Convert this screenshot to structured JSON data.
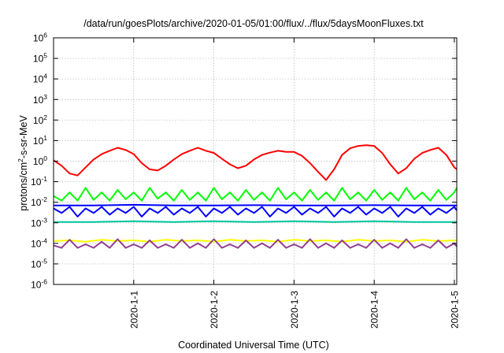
{
  "chart_data": {
    "type": "line",
    "title": "/data/run/goesPlots/archive/2020-01-05/01:00/flux/../flux/5daysMoonFluxes.txt",
    "xlabel": "Coordinated Universal Time (UTC)",
    "ylabel": "protons/cm2-s-sr-MeV",
    "ylabel_parts": {
      "pre": "protons/cm",
      "sup": "2",
      "post": "-s-sr-MeV"
    },
    "y_scale": "log",
    "ylim": [
      1e-06,
      1000000.0
    ],
    "xlim_days": [
      0,
      5.03
    ],
    "grid": true,
    "x_ticks": [
      {
        "day": 1,
        "label": "2020-1-1"
      },
      {
        "day": 2,
        "label": "2020-1-2"
      },
      {
        "day": 3,
        "label": "2020-1-3"
      },
      {
        "day": 4,
        "label": "2020-1-4"
      },
      {
        "day": 5,
        "label": "2020-1-5"
      }
    ],
    "y_ticks": [
      {
        "exp": -6,
        "base": "10",
        "sup": "-6"
      },
      {
        "exp": -5,
        "base": "10",
        "sup": "-5"
      },
      {
        "exp": -4,
        "base": "10",
        "sup": "-4"
      },
      {
        "exp": -3,
        "base": "10",
        "sup": "-3"
      },
      {
        "exp": -2,
        "base": "10",
        "sup": "-2"
      },
      {
        "exp": -1,
        "base": "10",
        "sup": "-1"
      },
      {
        "exp": 0,
        "base": "10",
        "sup": "0"
      },
      {
        "exp": 1,
        "base": "10",
        "sup": "1"
      },
      {
        "exp": 2,
        "base": "10",
        "sup": "2"
      },
      {
        "exp": 3,
        "base": "10",
        "sup": "3"
      },
      {
        "exp": 4,
        "base": "10",
        "sup": "4"
      },
      {
        "exp": 5,
        "base": "10",
        "sup": "5"
      },
      {
        "exp": 6,
        "base": "10",
        "sup": "6"
      }
    ],
    "series": [
      {
        "color": "#ff0000",
        "points": [
          [
            0,
            1.1
          ],
          [
            0.1,
            0.6
          ],
          [
            0.2,
            0.25
          ],
          [
            0.3,
            0.2
          ],
          [
            0.4,
            0.5
          ],
          [
            0.5,
            1.2
          ],
          [
            0.6,
            2.2
          ],
          [
            0.7,
            3.2
          ],
          [
            0.8,
            4.5
          ],
          [
            0.9,
            3.5
          ],
          [
            1.0,
            2.2
          ],
          [
            1.1,
            0.8
          ],
          [
            1.2,
            0.4
          ],
          [
            1.3,
            0.35
          ],
          [
            1.4,
            0.6
          ],
          [
            1.5,
            1.2
          ],
          [
            1.6,
            2.2
          ],
          [
            1.7,
            3.2
          ],
          [
            1.8,
            4.5
          ],
          [
            1.9,
            3.2
          ],
          [
            2.0,
            2.5
          ],
          [
            2.1,
            1.3
          ],
          [
            2.2,
            0.7
          ],
          [
            2.3,
            0.45
          ],
          [
            2.4,
            0.6
          ],
          [
            2.5,
            1.2
          ],
          [
            2.6,
            2.0
          ],
          [
            2.7,
            2.6
          ],
          [
            2.8,
            3.2
          ],
          [
            2.9,
            2.8
          ],
          [
            3.0,
            2.8
          ],
          [
            3.1,
            1.8
          ],
          [
            3.2,
            0.8
          ],
          [
            3.3,
            0.3
          ],
          [
            3.4,
            0.12
          ],
          [
            3.5,
            0.4
          ],
          [
            3.6,
            2.0
          ],
          [
            3.7,
            4.2
          ],
          [
            3.8,
            5.5
          ],
          [
            3.9,
            6.0
          ],
          [
            4.0,
            5.5
          ],
          [
            4.1,
            2.5
          ],
          [
            4.2,
            0.7
          ],
          [
            4.3,
            0.25
          ],
          [
            4.4,
            0.45
          ],
          [
            4.5,
            1.3
          ],
          [
            4.6,
            2.5
          ],
          [
            4.7,
            3.5
          ],
          [
            4.8,
            4.5
          ],
          [
            4.9,
            2.0
          ],
          [
            5.0,
            0.5
          ],
          [
            5.03,
            0.4
          ]
        ]
      },
      {
        "color": "#00ff00",
        "points": [
          [
            0,
            0.02
          ],
          [
            0.1,
            0.012
          ],
          [
            0.2,
            0.03
          ],
          [
            0.3,
            0.012
          ],
          [
            0.4,
            0.05
          ],
          [
            0.5,
            0.013
          ],
          [
            0.6,
            0.03
          ],
          [
            0.7,
            0.012
          ],
          [
            0.8,
            0.04
          ],
          [
            0.9,
            0.014
          ],
          [
            1.0,
            0.03
          ],
          [
            1.1,
            0.012
          ],
          [
            1.2,
            0.05
          ],
          [
            1.3,
            0.015
          ],
          [
            1.4,
            0.03
          ],
          [
            1.5,
            0.012
          ],
          [
            1.6,
            0.04
          ],
          [
            1.7,
            0.013
          ],
          [
            1.8,
            0.03
          ],
          [
            1.9,
            0.012
          ],
          [
            2.0,
            0.05
          ],
          [
            2.1,
            0.014
          ],
          [
            2.2,
            0.03
          ],
          [
            2.3,
            0.012
          ],
          [
            2.4,
            0.04
          ],
          [
            2.5,
            0.013
          ],
          [
            2.6,
            0.03
          ],
          [
            2.7,
            0.012
          ],
          [
            2.8,
            0.05
          ],
          [
            2.9,
            0.014
          ],
          [
            3.0,
            0.03
          ],
          [
            3.1,
            0.012
          ],
          [
            3.2,
            0.04
          ],
          [
            3.3,
            0.013
          ],
          [
            3.4,
            0.03
          ],
          [
            3.5,
            0.012
          ],
          [
            3.6,
            0.05
          ],
          [
            3.7,
            0.014
          ],
          [
            3.8,
            0.03
          ],
          [
            3.9,
            0.012
          ],
          [
            4.0,
            0.04
          ],
          [
            4.1,
            0.013
          ],
          [
            4.2,
            0.03
          ],
          [
            4.3,
            0.012
          ],
          [
            4.4,
            0.05
          ],
          [
            4.5,
            0.014
          ],
          [
            4.6,
            0.03
          ],
          [
            4.7,
            0.012
          ],
          [
            4.8,
            0.04
          ],
          [
            4.9,
            0.013
          ],
          [
            5.0,
            0.03
          ],
          [
            5.03,
            0.05
          ]
        ]
      },
      {
        "color": "#00c8a0",
        "points": [
          [
            0,
            0.0011
          ],
          [
            0.5,
            0.0011
          ],
          [
            1.0,
            0.0012
          ],
          [
            1.5,
            0.0011
          ],
          [
            2.0,
            0.0012
          ],
          [
            2.5,
            0.0011
          ],
          [
            3.0,
            0.0012
          ],
          [
            3.5,
            0.0011
          ],
          [
            4.0,
            0.0012
          ],
          [
            4.5,
            0.0011
          ],
          [
            5.03,
            0.0011
          ]
        ]
      },
      {
        "color": "#0000ff",
        "points": [
          [
            0,
            0.007
          ],
          [
            0.5,
            0.007
          ],
          [
            1.0,
            0.0075
          ],
          [
            1.5,
            0.007
          ],
          [
            2.0,
            0.007
          ],
          [
            2.5,
            0.0072
          ],
          [
            3.0,
            0.007
          ],
          [
            3.5,
            0.007
          ],
          [
            4.0,
            0.0072
          ],
          [
            4.5,
            0.007
          ],
          [
            5.03,
            0.007
          ]
        ]
      },
      {
        "color": "#0000ff",
        "points": [
          [
            0,
            0.005
          ],
          [
            0.1,
            0.003
          ],
          [
            0.2,
            0.006
          ],
          [
            0.3,
            0.002
          ],
          [
            0.4,
            0.005
          ],
          [
            0.5,
            0.003
          ],
          [
            0.6,
            0.006
          ],
          [
            0.7,
            0.0025
          ],
          [
            0.8,
            0.005
          ],
          [
            0.9,
            0.003
          ],
          [
            1.0,
            0.006
          ],
          [
            1.1,
            0.002
          ],
          [
            1.2,
            0.005
          ],
          [
            1.3,
            0.003
          ],
          [
            1.4,
            0.006
          ],
          [
            1.5,
            0.0025
          ],
          [
            1.6,
            0.005
          ],
          [
            1.7,
            0.003
          ],
          [
            1.8,
            0.006
          ],
          [
            1.9,
            0.002
          ],
          [
            2.0,
            0.005
          ],
          [
            2.1,
            0.003
          ],
          [
            2.2,
            0.006
          ],
          [
            2.3,
            0.0025
          ],
          [
            2.4,
            0.005
          ],
          [
            2.5,
            0.003
          ],
          [
            2.6,
            0.006
          ],
          [
            2.7,
            0.002
          ],
          [
            2.8,
            0.005
          ],
          [
            2.9,
            0.003
          ],
          [
            3.0,
            0.006
          ],
          [
            3.1,
            0.0025
          ],
          [
            3.2,
            0.005
          ],
          [
            3.3,
            0.003
          ],
          [
            3.4,
            0.006
          ],
          [
            3.5,
            0.002
          ],
          [
            3.6,
            0.005
          ],
          [
            3.7,
            0.003
          ],
          [
            3.8,
            0.006
          ],
          [
            3.9,
            0.0025
          ],
          [
            4.0,
            0.005
          ],
          [
            4.1,
            0.003
          ],
          [
            4.2,
            0.006
          ],
          [
            4.3,
            0.002
          ],
          [
            4.4,
            0.005
          ],
          [
            4.5,
            0.003
          ],
          [
            4.6,
            0.006
          ],
          [
            4.7,
            0.0025
          ],
          [
            4.8,
            0.005
          ],
          [
            4.9,
            0.003
          ],
          [
            5.0,
            0.006
          ],
          [
            5.03,
            0.004
          ]
        ]
      },
      {
        "color": "#ffff00",
        "points": [
          [
            0,
            0.00013
          ],
          [
            0.2,
            0.00014
          ],
          [
            0.4,
            0.00012
          ],
          [
            0.6,
            0.00015
          ],
          [
            0.8,
            0.00013
          ],
          [
            1.0,
            0.00014
          ],
          [
            1.2,
            0.00012
          ],
          [
            1.4,
            0.00015
          ],
          [
            1.6,
            0.00013
          ],
          [
            1.8,
            0.00014
          ],
          [
            2.0,
            0.00012
          ],
          [
            2.2,
            0.00015
          ],
          [
            2.4,
            0.00013
          ],
          [
            2.6,
            0.00014
          ],
          [
            2.8,
            0.00012
          ],
          [
            3.0,
            0.00015
          ],
          [
            3.2,
            0.00013
          ],
          [
            3.4,
            0.00014
          ],
          [
            3.6,
            0.00012
          ],
          [
            3.8,
            0.00015
          ],
          [
            4.0,
            0.00013
          ],
          [
            4.2,
            0.00014
          ],
          [
            4.4,
            0.00012
          ],
          [
            4.6,
            0.00015
          ],
          [
            4.8,
            0.00013
          ],
          [
            5.03,
            0.00014
          ]
        ]
      },
      {
        "color": "#904090",
        "points": [
          [
            0,
            8e-05
          ],
          [
            0.1,
            6e-05
          ],
          [
            0.2,
            0.00015
          ],
          [
            0.3,
            6e-05
          ],
          [
            0.4,
            9e-05
          ],
          [
            0.5,
            6e-05
          ],
          [
            0.6,
            0.00012
          ],
          [
            0.7,
            6e-05
          ],
          [
            0.8,
            0.00016
          ],
          [
            0.9,
            6e-05
          ],
          [
            1.0,
            9e-05
          ],
          [
            1.1,
            6e-05
          ],
          [
            1.2,
            0.00014
          ],
          [
            1.3,
            6e-05
          ],
          [
            1.4,
            9e-05
          ],
          [
            1.5,
            6e-05
          ],
          [
            1.6,
            0.00015
          ],
          [
            1.7,
            6e-05
          ],
          [
            1.8,
            0.0001
          ],
          [
            1.9,
            6e-05
          ],
          [
            2.0,
            0.00016
          ],
          [
            2.1,
            6e-05
          ],
          [
            2.2,
            9e-05
          ],
          [
            2.3,
            6e-05
          ],
          [
            2.4,
            0.00014
          ],
          [
            2.5,
            6e-05
          ],
          [
            2.6,
            0.0001
          ],
          [
            2.7,
            6e-05
          ],
          [
            2.8,
            0.00015
          ],
          [
            2.9,
            6e-05
          ],
          [
            3.0,
            9e-05
          ],
          [
            3.1,
            6e-05
          ],
          [
            3.2,
            0.00016
          ],
          [
            3.3,
            6e-05
          ],
          [
            3.4,
            0.0001
          ],
          [
            3.5,
            6e-05
          ],
          [
            3.6,
            0.00014
          ],
          [
            3.7,
            6e-05
          ],
          [
            3.8,
            9e-05
          ],
          [
            3.9,
            6e-05
          ],
          [
            4.0,
            0.00015
          ],
          [
            4.1,
            6e-05
          ],
          [
            4.2,
            0.0001
          ],
          [
            4.3,
            6e-05
          ],
          [
            4.4,
            0.00016
          ],
          [
            4.5,
            6e-05
          ],
          [
            4.6,
            9e-05
          ],
          [
            4.7,
            6e-05
          ],
          [
            4.8,
            0.00014
          ],
          [
            4.9,
            6e-05
          ],
          [
            5.0,
            0.0001
          ],
          [
            5.03,
            7e-05
          ]
        ]
      }
    ]
  }
}
